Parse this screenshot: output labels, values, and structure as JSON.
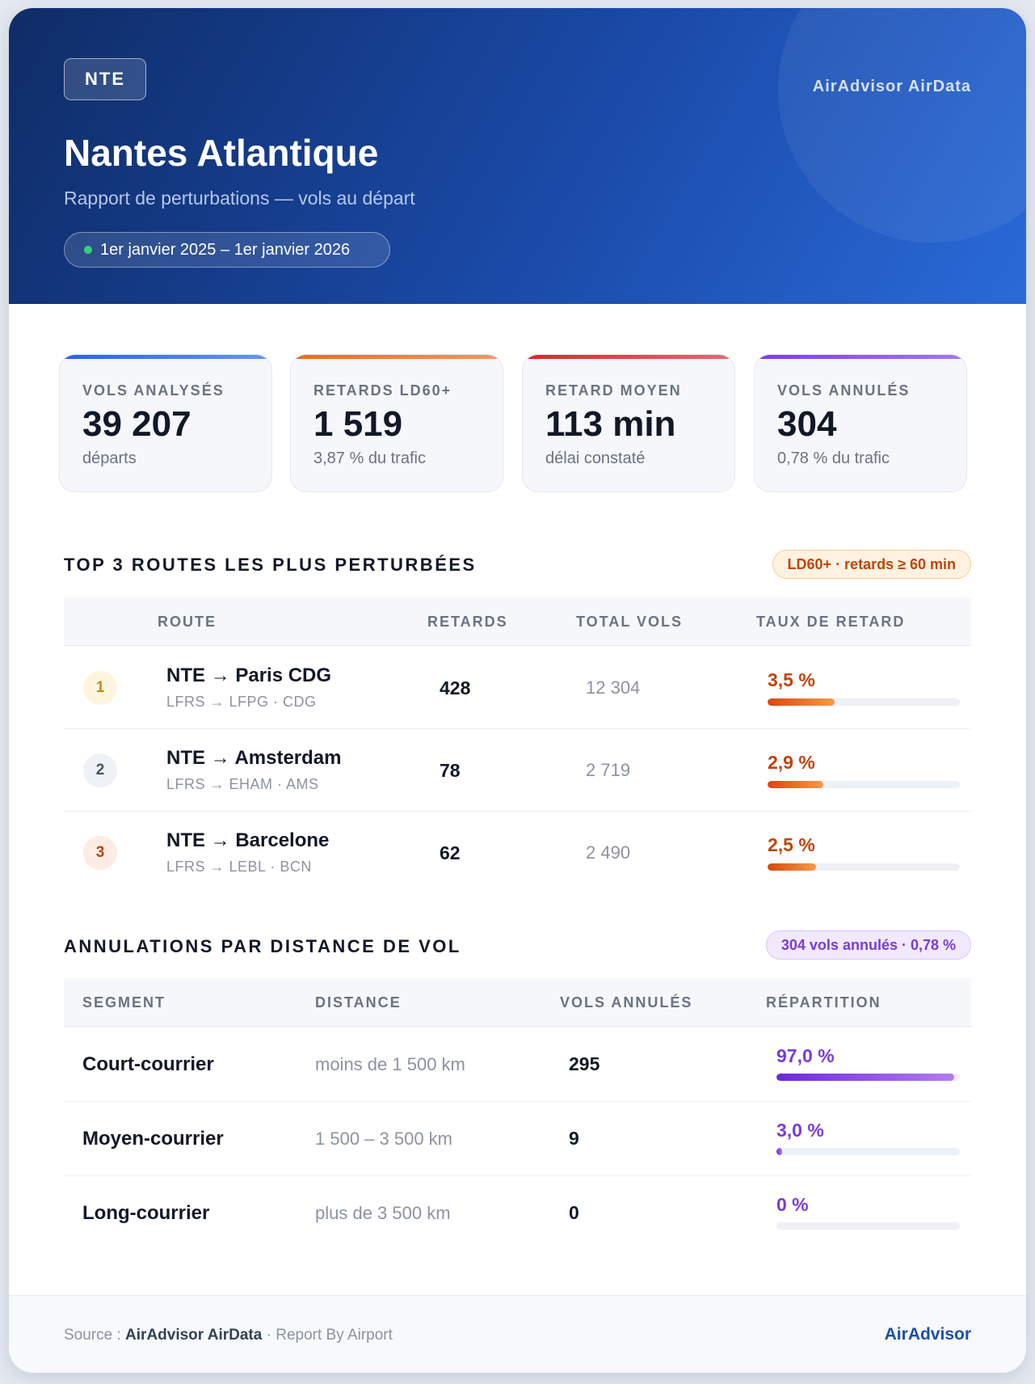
{
  "header": {
    "code": "NTE",
    "brand": "AirAdvisor AirData",
    "title": "Nantes Atlantique",
    "subtitle": "Rapport de perturbations — vols au départ",
    "period": "1er janvier 2025 – 1er janvier 2026"
  },
  "kpis": [
    {
      "label": "VOLS ANALYSÉS",
      "value": "39 207",
      "sub": "départs",
      "color": "#2563eb"
    },
    {
      "label": "RETARDS LD60+",
      "value": "1 519",
      "sub": "3,87 % du trafic",
      "color": "#ea6a1f"
    },
    {
      "label": "RETARD MOYEN",
      "value": "113 min",
      "sub": "délai constaté",
      "color": "#dc2626"
    },
    {
      "label": "VOLS ANNULÉS",
      "value": "304",
      "sub": "0,78 % du trafic",
      "color": "#7c3aed"
    }
  ],
  "routes_section": {
    "title": "TOP 3 ROUTES LES PLUS PERTURBÉES",
    "badge": "LD60+ · retards ≥ 60 min",
    "headers": {
      "route": "ROUTE",
      "delays": "RETARDS",
      "total": "TOTAL VOLS",
      "rate": "TAUX DE RETARD"
    },
    "rows": [
      {
        "rank": "1",
        "route": "NTE → Paris CDG",
        "codes": "LFRS → LFPG · CDG",
        "delays": "428",
        "total": "12 304",
        "rate": "3,5 %",
        "rate_fraction": 0.35
      },
      {
        "rank": "2",
        "route": "NTE → Amsterdam",
        "codes": "LFRS → EHAM · AMS",
        "delays": "78",
        "total": "2 719",
        "rate": "2,9 %",
        "rate_fraction": 0.29
      },
      {
        "rank": "3",
        "route": "NTE → Barcelone",
        "codes": "LFRS → LEBL · BCN",
        "delays": "62",
        "total": "2 490",
        "rate": "2,5 %",
        "rate_fraction": 0.25
      }
    ]
  },
  "cancel_section": {
    "title": "ANNULATIONS PAR DISTANCE DE VOL",
    "badge": "304 vols annulés · 0,78 %",
    "headers": {
      "segment": "SEGMENT",
      "distance": "DISTANCE",
      "cancelled": "VOLS ANNULÉS",
      "share": "RÉPARTITION"
    },
    "rows": [
      {
        "segment": "Court-courrier",
        "distance": "moins de 1 500 km",
        "cancelled": "295",
        "share": "97,0 %",
        "share_fraction": 0.97
      },
      {
        "segment": "Moyen-courrier",
        "distance": "1 500 – 3 500 km",
        "cancelled": "9",
        "share": "3,0 %",
        "share_fraction": 0.03
      },
      {
        "segment": "Long-courrier",
        "distance": "plus de 3 500 km",
        "cancelled": "0",
        "share": "0 %",
        "share_fraction": 0
      }
    ]
  },
  "footer": {
    "source_prefix": "Source : ",
    "source_name": "AirAdvisor AirData",
    "source_suffix": " · Report By Airport",
    "brand": "AirAdvisor"
  }
}
